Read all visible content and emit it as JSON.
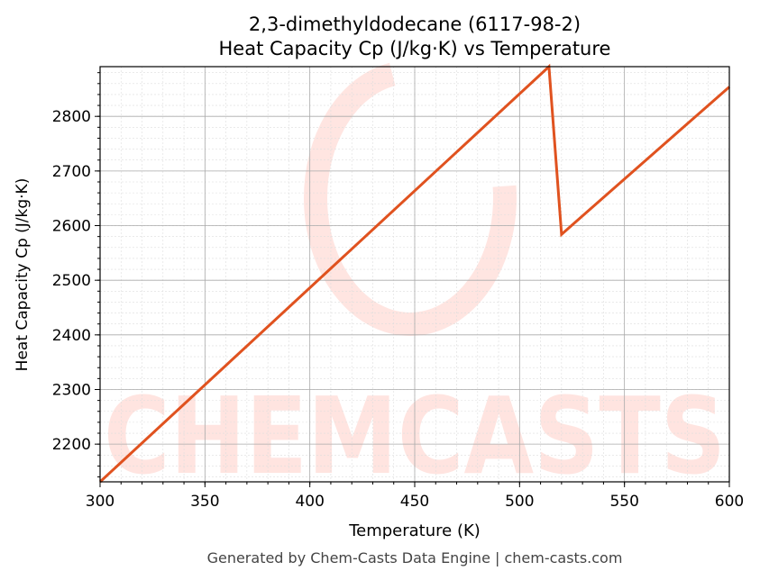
{
  "chart_data": {
    "type": "line",
    "title_line1": "2,3-dimethyldodecane (6117-98-2)",
    "title_line2": "Heat Capacity Cp (J/kg·K) vs Temperature",
    "xlabel": "Temperature (K)",
    "ylabel": "Heat Capacity Cp (J/kg·K)",
    "xlim": [
      300,
      600
    ],
    "ylim": [
      2131,
      2891
    ],
    "xticks": [
      300,
      350,
      400,
      450,
      500,
      550,
      600
    ],
    "yticks": [
      2200,
      2300,
      2400,
      2500,
      2600,
      2700,
      2800
    ],
    "grid": true,
    "series": [
      {
        "name": "Cp",
        "color": "#e0521f",
        "x": [
          300,
          514,
          520,
          600
        ],
        "y": [
          2131,
          2891,
          2584,
          2854
        ]
      }
    ],
    "watermark": "CHEMCASTS",
    "footer": "Generated by Chem-Casts Data Engine | chem-casts.com"
  }
}
